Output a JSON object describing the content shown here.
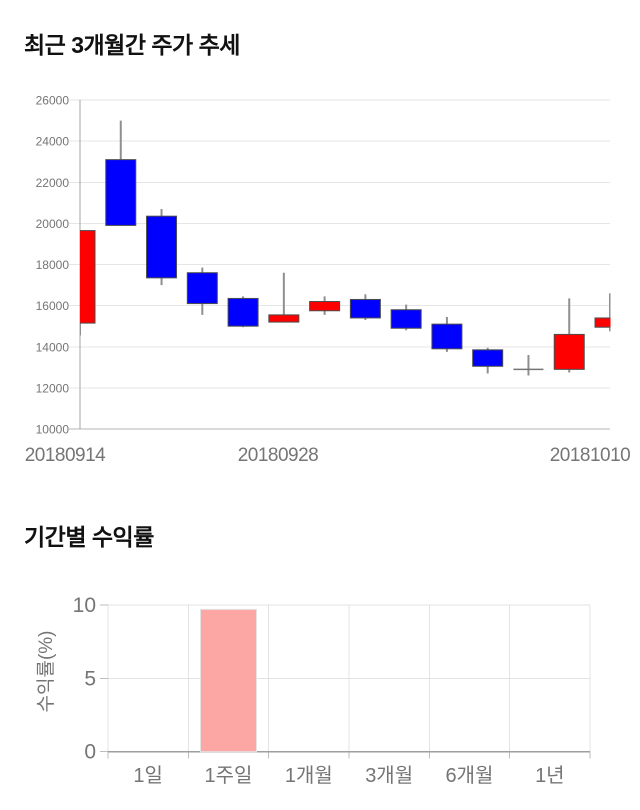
{
  "page_bg": "#ffffff",
  "chart_data": [
    {
      "type": "candlestick",
      "title": "최근 3개월간 주가 추세",
      "xlabel": "",
      "ylabel": "",
      "ylim": [
        10000,
        26000
      ],
      "y_ticks": [
        26000,
        24000,
        22000,
        20000,
        18000,
        16000,
        14000,
        12000,
        10000
      ],
      "x_tick_labels": [
        "20180914",
        "20180928",
        "20181010"
      ],
      "grid": "horizontal",
      "up_color": "#ff0000",
      "down_color": "#0000ff",
      "doji_color": "#757575",
      "wick_color": "#8f8f8f",
      "candles": [
        {
          "open": 15150,
          "high": 19650,
          "low": 14550,
          "close": 19650,
          "dir": "up"
        },
        {
          "open": 23100,
          "high": 25000,
          "low": 19900,
          "close": 19900,
          "dir": "down"
        },
        {
          "open": 20350,
          "high": 20700,
          "low": 17000,
          "close": 17350,
          "dir": "down"
        },
        {
          "open": 17600,
          "high": 17850,
          "low": 15550,
          "close": 16100,
          "dir": "down"
        },
        {
          "open": 16350,
          "high": 16450,
          "low": 14950,
          "close": 15000,
          "dir": "down"
        },
        {
          "open": 15200,
          "high": 17600,
          "low": 15200,
          "close": 15550,
          "dir": "up"
        },
        {
          "open": 15750,
          "high": 16450,
          "low": 15550,
          "close": 16200,
          "dir": "up"
        },
        {
          "open": 16300,
          "high": 16550,
          "low": 15300,
          "close": 15400,
          "dir": "down"
        },
        {
          "open": 15800,
          "high": 16050,
          "low": 14800,
          "close": 14900,
          "dir": "down"
        },
        {
          "open": 15100,
          "high": 15450,
          "low": 13750,
          "close": 13900,
          "dir": "down"
        },
        {
          "open": 13850,
          "high": 13950,
          "low": 12700,
          "close": 13050,
          "dir": "down"
        },
        {
          "open": 12900,
          "high": 13600,
          "low": 12600,
          "close": 12900,
          "dir": "doji"
        },
        {
          "open": 12900,
          "high": 16350,
          "low": 12750,
          "close": 14600,
          "dir": "up"
        },
        {
          "open": 14950,
          "high": 16600,
          "low": 14750,
          "close": 15400,
          "dir": "up"
        }
      ]
    },
    {
      "type": "bar",
      "title": "기간별 수익률",
      "xlabel": "",
      "ylabel": "수익률(%)",
      "ylim": [
        0,
        10
      ],
      "y_ticks": [
        10,
        5,
        0
      ],
      "categories": [
        "1일",
        "1주일",
        "1개월",
        "3개월",
        "6개월",
        "1년"
      ],
      "values": [
        0,
        9.7,
        0,
        0,
        0,
        0
      ],
      "grid": "both",
      "legend": "none",
      "bar_color": "#fca7a4",
      "bar_border_color": "#e3e3e3"
    }
  ],
  "text_colors": {
    "axis_label": "#757575",
    "title": "#111111"
  }
}
